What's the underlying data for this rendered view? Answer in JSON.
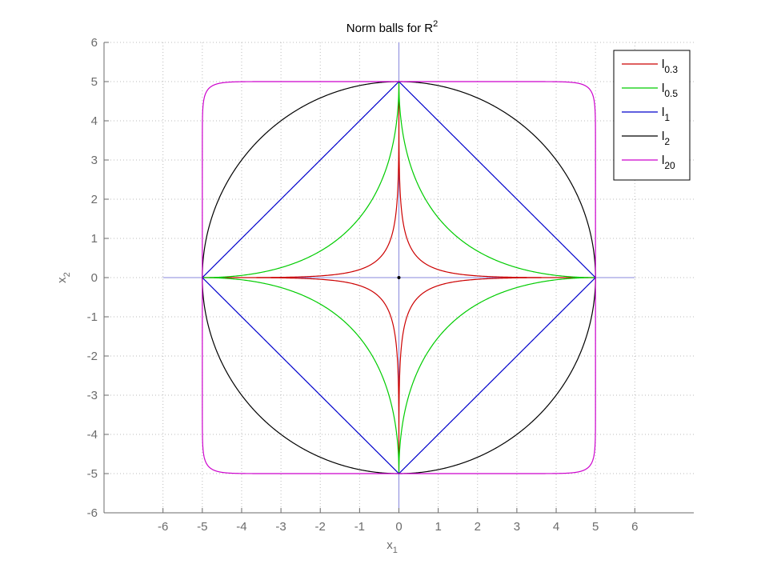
{
  "chart_data": {
    "type": "line",
    "title": {
      "main": "Norm balls for R",
      "sup": "2"
    },
    "xlabel": {
      "main": "x",
      "sub": "1"
    },
    "ylabel": {
      "main": "x",
      "sub": "2"
    },
    "xlim": [
      -7.5,
      7.5
    ],
    "ylim": [
      -6,
      6
    ],
    "xticks": [
      -6,
      -5,
      -4,
      -3,
      -2,
      -1,
      0,
      1,
      2,
      3,
      4,
      5,
      6
    ],
    "yticks": [
      -6,
      -5,
      -4,
      -3,
      -2,
      -1,
      0,
      1,
      2,
      3,
      4,
      5,
      6
    ],
    "grid": true,
    "legend_position": "top-right",
    "center_lines": {
      "color": "#8888dd",
      "x_extent": [
        -6,
        6
      ],
      "y_extent": [
        -6,
        6
      ]
    },
    "radius": 5,
    "series": [
      {
        "name": "l",
        "sub": "0.3",
        "p": 0.3,
        "color": "#cc0000"
      },
      {
        "name": "l",
        "sub": "0.5",
        "p": 0.5,
        "color": "#00cc00"
      },
      {
        "name": "l",
        "sub": "1",
        "p": 1,
        "color": "#0000cc"
      },
      {
        "name": "l",
        "sub": "2",
        "p": 2,
        "color": "#000000"
      },
      {
        "name": "l",
        "sub": "20",
        "p": 20,
        "color": "#cc00cc"
      }
    ],
    "origin_marker_color": "#000000"
  }
}
